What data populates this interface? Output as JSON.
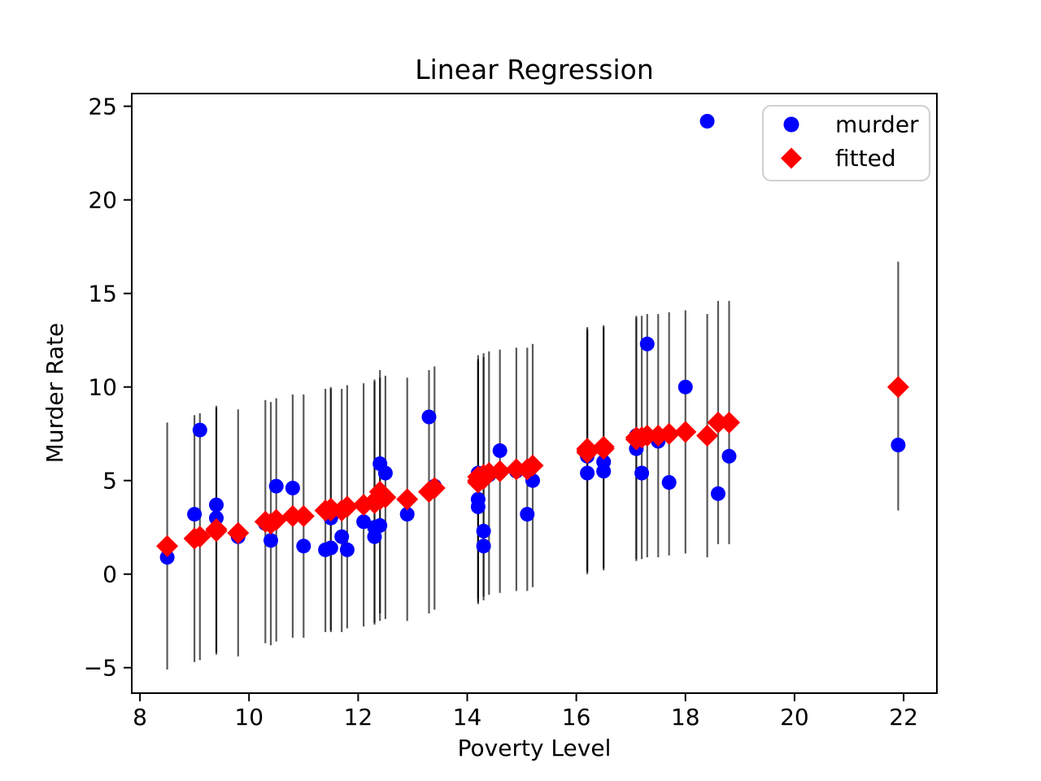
{
  "figure": {
    "title": "Linear Regression"
  },
  "chart_data": {
    "type": "scatter",
    "title": "Linear Regression",
    "xlabel": "Poverty Level",
    "ylabel": "Murder Rate",
    "xlim": [
      7.85,
      22.61
    ],
    "ylim": [
      -6.36,
      25.68
    ],
    "xticks": [
      8,
      10,
      12,
      14,
      16,
      18,
      20,
      22
    ],
    "xtick_labels": [
      "8",
      "10",
      "12",
      "14",
      "16",
      "18",
      "20",
      "22"
    ],
    "yticks": [
      -5,
      0,
      5,
      10,
      15,
      20,
      25
    ],
    "ytick_labels": [
      "−5",
      "0",
      "5",
      "10",
      "15",
      "20",
      "25"
    ],
    "grid": false,
    "legend_position": "upper right",
    "legend": [
      {
        "label": "murder",
        "marker": "circle",
        "color": "#0000ff"
      },
      {
        "label": "fitted",
        "marker": "diamond",
        "color": "#ff0000"
      }
    ],
    "series": [
      {
        "name": "murder",
        "marker": "circle",
        "color": "#0000ff",
        "points": [
          [
            8.5,
            0.9
          ],
          [
            9.0,
            3.2
          ],
          [
            9.1,
            7.7
          ],
          [
            9.4,
            3.0
          ],
          [
            9.4,
            3.7
          ],
          [
            9.8,
            2.0
          ],
          [
            10.3,
            2.7
          ],
          [
            10.4,
            1.8
          ],
          [
            10.5,
            4.7
          ],
          [
            10.8,
            4.6
          ],
          [
            11.0,
            1.5
          ],
          [
            11.4,
            1.3
          ],
          [
            11.5,
            1.4
          ],
          [
            11.5,
            3.0
          ],
          [
            11.7,
            2.0
          ],
          [
            11.8,
            1.3
          ],
          [
            12.1,
            2.8
          ],
          [
            12.3,
            2.0
          ],
          [
            12.3,
            2.5
          ],
          [
            12.4,
            2.6
          ],
          [
            12.4,
            5.9
          ],
          [
            12.5,
            5.4
          ],
          [
            12.9,
            3.2
          ],
          [
            13.3,
            8.4
          ],
          [
            13.4,
            4.7
          ],
          [
            14.2,
            3.6
          ],
          [
            14.2,
            4.0
          ],
          [
            14.2,
            5.4
          ],
          [
            14.3,
            1.5
          ],
          [
            14.3,
            2.3
          ],
          [
            14.4,
            5.3
          ],
          [
            14.6,
            6.6
          ],
          [
            14.9,
            5.5
          ],
          [
            15.1,
            3.2
          ],
          [
            15.2,
            5.0
          ],
          [
            16.2,
            5.4
          ],
          [
            16.2,
            6.3
          ],
          [
            16.2,
            6.5
          ],
          [
            16.5,
            5.5
          ],
          [
            16.5,
            6.0
          ],
          [
            17.1,
            6.7
          ],
          [
            17.1,
            7.4
          ],
          [
            17.2,
            5.4
          ],
          [
            17.3,
            12.3
          ],
          [
            17.5,
            7.1
          ],
          [
            17.7,
            4.9
          ],
          [
            18.0,
            10.0
          ],
          [
            18.4,
            24.2
          ],
          [
            18.6,
            4.3
          ],
          [
            18.8,
            6.3
          ],
          [
            21.9,
            6.9
          ]
        ]
      },
      {
        "name": "fitted",
        "marker": "diamond",
        "color": "#ff0000",
        "points": [
          [
            8.5,
            1.5
          ],
          [
            9.0,
            1.9
          ],
          [
            9.1,
            2.0
          ],
          [
            9.4,
            2.3
          ],
          [
            9.4,
            2.4
          ],
          [
            9.8,
            2.2
          ],
          [
            10.3,
            2.8
          ],
          [
            10.4,
            2.7
          ],
          [
            10.5,
            2.9
          ],
          [
            10.8,
            3.1
          ],
          [
            11.0,
            3.1
          ],
          [
            11.4,
            3.4
          ],
          [
            11.5,
            3.4
          ],
          [
            11.5,
            3.5
          ],
          [
            11.7,
            3.4
          ],
          [
            11.8,
            3.6
          ],
          [
            12.1,
            3.7
          ],
          [
            12.3,
            3.8
          ],
          [
            12.3,
            3.9
          ],
          [
            12.4,
            4.0
          ],
          [
            12.4,
            4.4
          ],
          [
            12.5,
            4.1
          ],
          [
            12.9,
            4.0
          ],
          [
            13.3,
            4.4
          ],
          [
            13.4,
            4.6
          ],
          [
            14.2,
            4.9
          ],
          [
            14.2,
            5.0
          ],
          [
            14.2,
            5.2
          ],
          [
            14.3,
            5.1
          ],
          [
            14.3,
            5.3
          ],
          [
            14.4,
            5.4
          ],
          [
            14.6,
            5.5
          ],
          [
            14.9,
            5.6
          ],
          [
            15.1,
            5.6
          ],
          [
            15.2,
            5.8
          ],
          [
            16.2,
            6.5
          ],
          [
            16.2,
            6.6
          ],
          [
            16.2,
            6.7
          ],
          [
            16.5,
            6.7
          ],
          [
            16.5,
            6.8
          ],
          [
            17.1,
            7.2
          ],
          [
            17.1,
            7.3
          ],
          [
            17.2,
            7.3
          ],
          [
            17.3,
            7.4
          ],
          [
            17.5,
            7.4
          ],
          [
            17.7,
            7.5
          ],
          [
            18.0,
            7.6
          ],
          [
            18.4,
            7.4
          ],
          [
            18.6,
            8.1
          ],
          [
            18.8,
            8.1
          ],
          [
            21.9,
            10.0
          ]
        ]
      },
      {
        "name": "prediction_interval",
        "type": "vlines",
        "color": "#000000",
        "opacity": 0.65,
        "bars": [
          [
            8.5,
            -5.1,
            8.1
          ],
          [
            9.0,
            -4.7,
            8.5
          ],
          [
            9.1,
            -4.6,
            8.6
          ],
          [
            9.4,
            -4.3,
            8.9
          ],
          [
            9.4,
            -4.2,
            9.0
          ],
          [
            9.8,
            -4.4,
            8.8
          ],
          [
            10.3,
            -3.7,
            9.3
          ],
          [
            10.4,
            -3.8,
            9.2
          ],
          [
            10.5,
            -3.6,
            9.4
          ],
          [
            10.8,
            -3.4,
            9.6
          ],
          [
            11.0,
            -3.4,
            9.6
          ],
          [
            11.4,
            -3.1,
            9.9
          ],
          [
            11.5,
            -3.1,
            9.9
          ],
          [
            11.5,
            -3.0,
            10.0
          ],
          [
            11.7,
            -3.1,
            9.9
          ],
          [
            11.8,
            -2.9,
            10.1
          ],
          [
            12.1,
            -2.8,
            10.2
          ],
          [
            12.3,
            -2.7,
            10.3
          ],
          [
            12.3,
            -2.6,
            10.4
          ],
          [
            12.4,
            -2.5,
            10.5
          ],
          [
            12.4,
            -2.1,
            10.9
          ],
          [
            12.5,
            -2.4,
            10.6
          ],
          [
            12.9,
            -2.5,
            10.5
          ],
          [
            13.3,
            -2.1,
            10.9
          ],
          [
            13.4,
            -1.9,
            11.1
          ],
          [
            14.2,
            -1.6,
            11.4
          ],
          [
            14.2,
            -1.5,
            11.5
          ],
          [
            14.2,
            -1.3,
            11.7
          ],
          [
            14.3,
            -1.4,
            11.6
          ],
          [
            14.3,
            -1.2,
            11.8
          ],
          [
            14.4,
            -1.1,
            11.9
          ],
          [
            14.6,
            -1.0,
            12.0
          ],
          [
            14.9,
            -0.9,
            12.1
          ],
          [
            15.1,
            -0.9,
            12.1
          ],
          [
            15.2,
            -0.7,
            12.3
          ],
          [
            16.2,
            0.0,
            13.0
          ],
          [
            16.2,
            0.1,
            13.1
          ],
          [
            16.2,
            0.2,
            13.2
          ],
          [
            16.5,
            0.2,
            13.2
          ],
          [
            16.5,
            0.3,
            13.3
          ],
          [
            17.1,
            0.7,
            13.7
          ],
          [
            17.1,
            0.8,
            13.8
          ],
          [
            17.2,
            0.8,
            13.8
          ],
          [
            17.3,
            0.9,
            13.9
          ],
          [
            17.5,
            0.9,
            13.9
          ],
          [
            17.7,
            1.0,
            14.0
          ],
          [
            18.0,
            1.1,
            14.1
          ],
          [
            18.4,
            0.9,
            13.9
          ],
          [
            18.6,
            1.6,
            14.6
          ],
          [
            18.8,
            1.6,
            14.6
          ],
          [
            21.9,
            3.4,
            16.7
          ]
        ]
      }
    ]
  }
}
